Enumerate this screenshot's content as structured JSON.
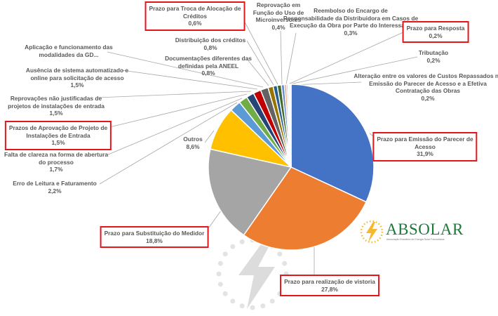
{
  "chart_data": {
    "type": "pie",
    "title": "",
    "slices": [
      {
        "label": "Prazo para Emissão do Parecer de Acesso",
        "value": 31.9,
        "text": "31,9%",
        "color": "#4472C4"
      },
      {
        "label": "Prazo para realização de vistoria",
        "value": 27.8,
        "text": "27,8%",
        "color": "#ED7D31"
      },
      {
        "label": "Prazo para Substituição do Medidor",
        "value": 18.8,
        "text": "18,8%",
        "color": "#A5A5A5"
      },
      {
        "label": "Outros",
        "value": 8.6,
        "text": "8,6%",
        "color": "#FFC000"
      },
      {
        "label": "Erro de Leitura e Faturamento",
        "value": 2.2,
        "text": "2,2%",
        "color": "#5B9BD5"
      },
      {
        "label": "Falta de clareza na forma de abertura do processo",
        "value": 1.7,
        "text": "1,7%",
        "color": "#70AD47"
      },
      {
        "label": "Prazos de Aprovação de Projeto de Instalações de Entrada",
        "value": 1.5,
        "text": "1,5%",
        "color": "#264478"
      },
      {
        "label": "Reprovações não justificadas de projetos de instalações de entrada",
        "value": 1.5,
        "text": "1,5%",
        "color": "#C00000"
      },
      {
        "label": "Ausência de sistema automatizado e online para solicitação de acesso",
        "value": 1.5,
        "text": "1,5%",
        "color": "#636363"
      },
      {
        "label": "Aplicação e funcionamento das modalidades da GD...",
        "value": 1.0,
        "text": "",
        "color": "#997300"
      },
      {
        "label": "Documentações diferentes das definidas pela ANEEL",
        "value": 0.8,
        "text": "0,8%",
        "color": "#255E91"
      },
      {
        "label": "Distribuição dos créditos",
        "value": 0.8,
        "text": "0,8%",
        "color": "#43682B"
      },
      {
        "label": "Prazo para Troca de Alocação de Créditos",
        "value": 0.6,
        "text": "0,6%",
        "color": "#698ED0"
      },
      {
        "label": "Reprovação em Função do Uso de Microinversores",
        "value": 0.4,
        "text": "0,4%",
        "color": "#F1975A"
      },
      {
        "label": "Reembolso do Encargo de Responsabilidade da Distribuidora em Casos de Execução da Obra por Parte do Interessado",
        "value": 0.3,
        "text": "0,3%",
        "color": "#B7B7B7"
      },
      {
        "label": "Prazo para Resposta",
        "value": 0.2,
        "text": "0,2%",
        "color": "#FFCD33"
      },
      {
        "label": "Tributação",
        "value": 0.2,
        "text": "0,2%",
        "color": "#7CAFDD"
      },
      {
        "label": "Alteração entre os valores de Custos Repassados na Emissão do Parecer de Acesso e a Efetiva Contratação das Obras",
        "value": 0.2,
        "text": "0,2%",
        "color": "#8CC168"
      }
    ],
    "legend": "none",
    "highlighted_labels": [
      "Prazo para Troca de Alocação de Créditos",
      "Prazo para Resposta",
      "Prazo para Emissão do Parecer de Acesso",
      "Prazo para realização de vistoria",
      "Prazo para Substituição do Medidor",
      "Prazos de Aprovação de Projeto de Instalações de Entrada"
    ],
    "highlight_color": "#E8141B"
  },
  "labels": [
    {
      "l1": "Prazo para Emissão do Parecer de",
      "l2": "Acesso",
      "pct": "31,9%"
    },
    {
      "l1": "Prazo para realização de vistoria",
      "l2": "",
      "pct": "27,8%"
    },
    {
      "l1": "Prazo para Substituição do Medidor",
      "l2": "",
      "pct": "18,8%"
    },
    {
      "l1": "Outros",
      "l2": "",
      "pct": "8,6%"
    },
    {
      "l1": "Erro de Leitura e Faturamento",
      "l2": "",
      "pct": "2,2%"
    },
    {
      "l1": "Falta de clareza na forma de abertura",
      "l2": "do processo",
      "pct": "1,7%"
    },
    {
      "l1": "Prazos de Aprovação de Projeto de",
      "l2": "Instalações de Entrada",
      "pct": "1,5%"
    },
    {
      "l1": "Reprovações não justificadas de",
      "l2": "projetos de instalações de entrada",
      "pct": "1,5%"
    },
    {
      "l1": "Ausência de sistema automatizado e",
      "l2": "online para solicitação de acesso",
      "pct": "1,5%"
    },
    {
      "l1": "Aplicação e funcionamento das",
      "l2": "modalidades da GD...",
      "pct": ""
    },
    {
      "l1": "Documentações diferentes das",
      "l2": "definidas pela ANEEL",
      "pct": "0,8%"
    },
    {
      "l1": "Distribuição dos créditos",
      "l2": "",
      "pct": "0,8%"
    },
    {
      "l1": "Prazo para Troca de Alocação de",
      "l2": "Créditos",
      "pct": "0,6%"
    },
    {
      "l1": "Reprovação em",
      "l2": "Função do Uso de Microinversores",
      "pct": "0,4%"
    },
    {
      "l1": "Reembolso do Encargo de",
      "l2": "Responsabilidade da Distribuidora em Casos de Execução da Obra por Parte do Interessado",
      "pct": "0,3%"
    },
    {
      "l1": "Prazo para Resposta",
      "l2": "",
      "pct": "0,2%"
    },
    {
      "l1": "Tributação",
      "l2": "",
      "pct": "0,2%"
    },
    {
      "l1": "Alteração entre os valores de Custos Repassados na",
      "l2": "Emissão do Parecer de Acesso e a Efetiva Contratação das Obras",
      "pct": "0,2%"
    }
  ],
  "logo": {
    "name": "ABSOLAR",
    "subtitle": "Associação Brasileira de Energia Solar Fotovoltaica"
  }
}
